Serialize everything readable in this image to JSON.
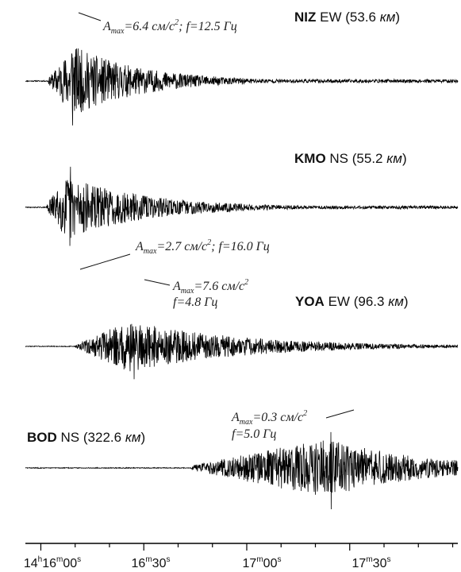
{
  "chart_data": {
    "type": "line",
    "title": "",
    "xlabel": "",
    "ylabel": "",
    "grid": false,
    "x_ticks": [
      {
        "h": "14",
        "m": "16",
        "s": "00",
        "t": 0
      },
      {
        "m": "16",
        "s": "30",
        "t": 30
      },
      {
        "m": "17",
        "s": "00",
        "t": 60
      },
      {
        "m": "17",
        "s": "30",
        "t": 90
      }
    ],
    "xlim": [
      -4.5,
      121.5
    ],
    "series": [
      {
        "station": "NIZ",
        "component": "EW",
        "dist": "53.6",
        "unit": "км",
        "onset": 2.2,
        "peak": 9.5,
        "amp": 0.62,
        "decay": 20,
        "seed": 11,
        "peak_t": 9.2,
        "annotation": {
          "A": "A",
          "sub": "max",
          "text1": "=6.4 см/с",
          "sup": "2",
          "text2": "; f=12.5 Гц",
          "line2": ""
        }
      },
      {
        "station": "KMO",
        "component": "NS",
        "dist": "55.2",
        "unit": "км",
        "onset": 1.5,
        "peak": 7.5,
        "amp": 0.55,
        "decay": 24,
        "seed": 29,
        "peak_t": 8.7,
        "annotation": {
          "A": "A",
          "sub": "max",
          "text1": "=2.7 см/с",
          "sup": "2",
          "text2": "; f=16.0 Гц",
          "line2": ""
        }
      },
      {
        "station": "YOA",
        "component": "EW",
        "dist": "96.3",
        "unit": "км",
        "onset": 10.0,
        "peak": 26.0,
        "amp": 0.45,
        "decay": 32,
        "seed": 47,
        "peak_t": 27.3,
        "annotation": {
          "A": "A",
          "sub": "max",
          "text1": "=7.6 см/с",
          "sup": "2",
          "text2": "",
          "line2": "f=4.8 Гц"
        }
      },
      {
        "station": "BOD",
        "component": "NS",
        "dist": "322.6",
        "unit": "км",
        "onset": 44.0,
        "peak": 83.0,
        "amp": 0.52,
        "decay": 28,
        "seed": 83,
        "peak_t": 84.5,
        "annotation": {
          "A": "A",
          "sub": "max",
          "text1": "=0.3 см/с",
          "sup": "2",
          "text2": "",
          "line2": "f=5.0 Гц"
        }
      }
    ]
  }
}
